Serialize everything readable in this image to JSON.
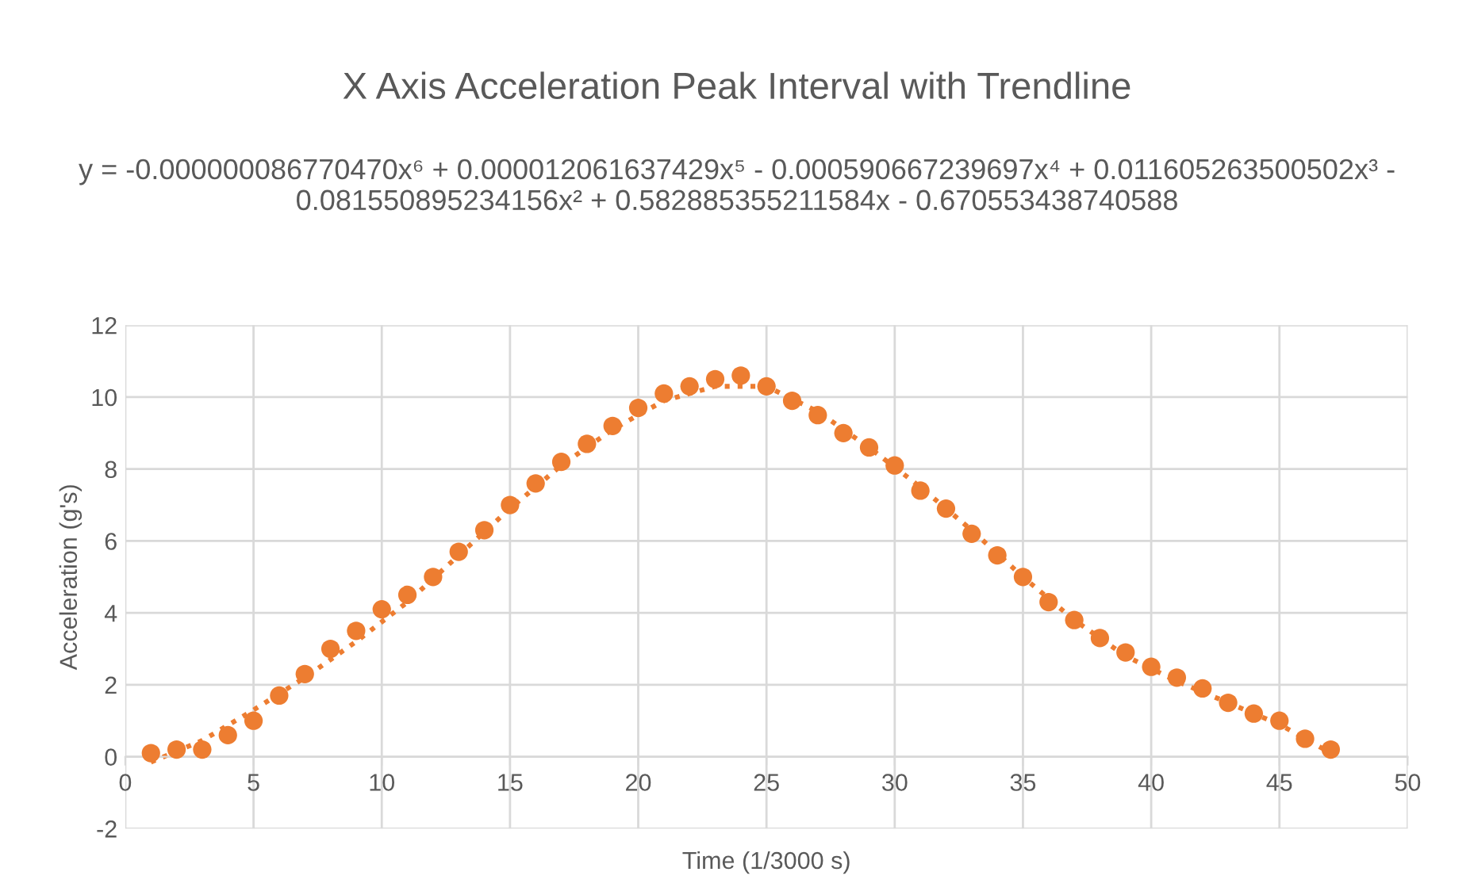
{
  "chart_data": {
    "type": "scatter",
    "title": "X Axis Acceleration Peak Interval with Trendline",
    "subtitle": "y = -0.000000086770470x⁶ + 0.000012061637429x⁵ - 0.000590667239697x⁴ + 0.011605263500502x³ - 0.081550895234156x² + 0.582885355211584x - 0.670553438740588",
    "xlabel": "Time (1/3000 s)",
    "ylabel": "Acceleration (g's)",
    "xlim": [
      0,
      50
    ],
    "xticks": [
      0,
      5,
      10,
      15,
      20,
      25,
      30,
      35,
      40,
      45,
      50
    ],
    "ylim": [
      -2,
      12
    ],
    "yticks": [
      -2,
      0,
      2,
      4,
      6,
      8,
      10,
      12
    ],
    "grid": true,
    "legend": false,
    "marker": "circle",
    "series": [
      {
        "color": "#ed7d31",
        "x": [
          1,
          2,
          3,
          4,
          5,
          6,
          7,
          8,
          9,
          10,
          11,
          12,
          13,
          14,
          15,
          16,
          17,
          18,
          19,
          20,
          21,
          22,
          23,
          24,
          25,
          26,
          27,
          28,
          29,
          30,
          31,
          32,
          33,
          34,
          35,
          36,
          37,
          38,
          39,
          40,
          41,
          42,
          43,
          44,
          45,
          46,
          47
        ],
        "values": [
          0.1,
          0.2,
          0.2,
          0.6,
          1.0,
          1.7,
          2.3,
          3.0,
          3.5,
          4.1,
          4.5,
          5.0,
          5.7,
          6.3,
          7.0,
          7.6,
          8.2,
          8.7,
          9.2,
          9.7,
          10.1,
          10.3,
          10.5,
          10.6,
          10.3,
          9.9,
          9.5,
          9.0,
          8.6,
          8.1,
          7.4,
          6.9,
          6.2,
          5.6,
          5.0,
          4.3,
          3.8,
          3.3,
          2.9,
          2.5,
          2.2,
          1.9,
          1.5,
          1.2,
          1.0,
          0.5,
          0.2
        ]
      },
      {
        "type": "line",
        "color": "#ed7d31",
        "line_style": "dotted",
        "marker": "none",
        "x": [
          1,
          3,
          5,
          7,
          9,
          11,
          13,
          15,
          17,
          19,
          21,
          23,
          25,
          27,
          29,
          31,
          33,
          35,
          37,
          39,
          41,
          43,
          45,
          47
        ],
        "values": [
          -0.15,
          0.45,
          1.3,
          2.2,
          3.2,
          4.3,
          5.6,
          6.9,
          8.1,
          9.1,
          9.9,
          10.3,
          10.3,
          9.6,
          8.6,
          7.5,
          6.3,
          5.0,
          3.8,
          2.8,
          2.1,
          1.5,
          0.9,
          0.1
        ]
      }
    ]
  }
}
